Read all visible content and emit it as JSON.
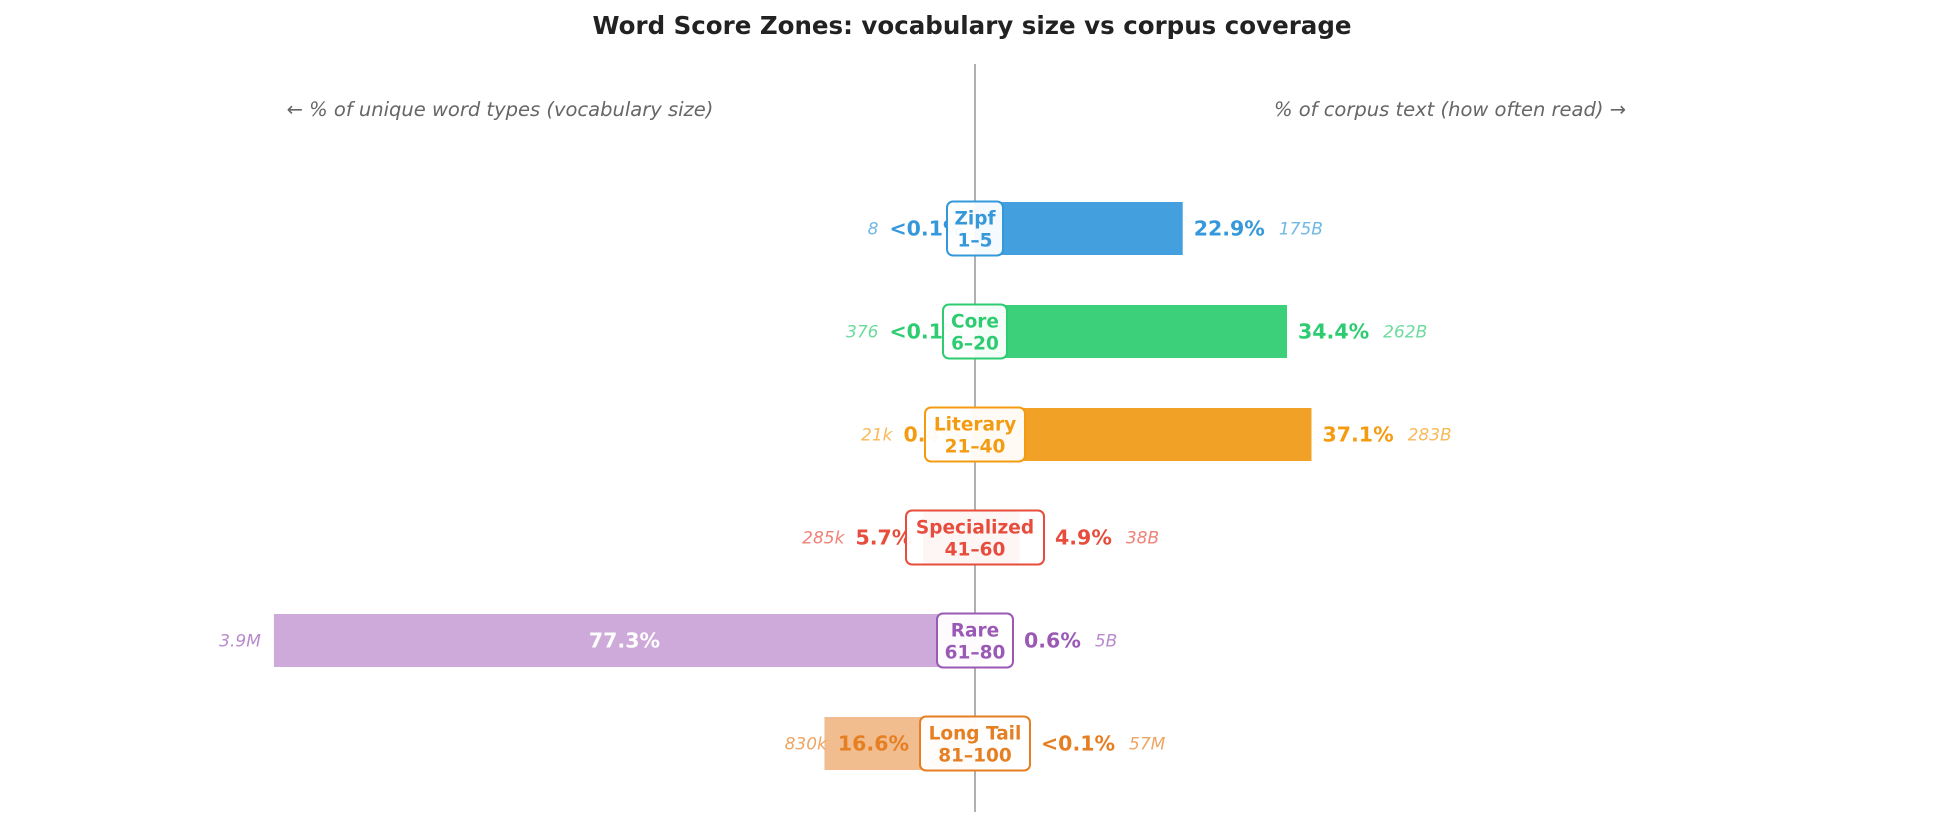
{
  "chart_data": {
    "type": "bar",
    "title": "Word Score Zones: vocabulary size vs corpus coverage",
    "left_axis_hint": "← % of unique word types  (vocabulary size)",
    "right_axis_hint": "% of corpus text  (how often read) →",
    "categories": [
      "Zipf 1–5",
      "Core 6–20",
      "Literary 21–40",
      "Specialized 41–60",
      "Rare 61–80",
      "Long Tail 81–100"
    ],
    "zones": [
      {
        "name": "Zipf",
        "range": "1–5",
        "color": "#3498db",
        "bar_color": "#449fdf",
        "vocab_value": 0.05,
        "vocab_label": "<0.1%",
        "vocab_count": "8",
        "corpus_value": 22.9,
        "corpus_label": "22.9%",
        "corpus_count": "175B"
      },
      {
        "name": "Core",
        "range": "6–20",
        "color": "#2ecc71",
        "bar_color": "#3dd07b",
        "vocab_value": 0.05,
        "vocab_label": "<0.1%",
        "vocab_count": "376",
        "corpus_value": 34.4,
        "corpus_label": "34.4%",
        "corpus_count": "262B"
      },
      {
        "name": "Literary",
        "range": "21–40",
        "color": "#f39c12",
        "bar_color": "#f1a226",
        "vocab_value": 0.4,
        "vocab_label": "0.4%",
        "vocab_count": "21k",
        "corpus_value": 37.1,
        "corpus_label": "37.1%",
        "corpus_count": "283B"
      },
      {
        "name": "Specialized",
        "range": "41–60",
        "color": "#e74c3c",
        "bar_color": "#e74c3c",
        "vocab_value": 5.7,
        "vocab_label": "5.7%",
        "vocab_count": "285k",
        "corpus_value": 4.9,
        "corpus_label": "4.9%",
        "corpus_count": "38B"
      },
      {
        "name": "Rare",
        "range": "61–80",
        "color": "#9b59b6",
        "bar_color": "#cdaada",
        "vocab_value": 77.3,
        "vocab_label": "77.3%",
        "vocab_count": "3.9M",
        "corpus_value": 0.6,
        "corpus_label": "0.6%",
        "corpus_count": "5B"
      },
      {
        "name": "Long Tail",
        "range": "81–100",
        "color": "#e67e22",
        "bar_color": "#f1bc8e",
        "vocab_value": 16.6,
        "vocab_label": "16.6%",
        "vocab_count": "830k",
        "corpus_value": 0.05,
        "corpus_label": "<0.1%",
        "corpus_count": "57M"
      }
    ],
    "xlim": [
      -80,
      80
    ],
    "grid": false,
    "legend": "none"
  }
}
